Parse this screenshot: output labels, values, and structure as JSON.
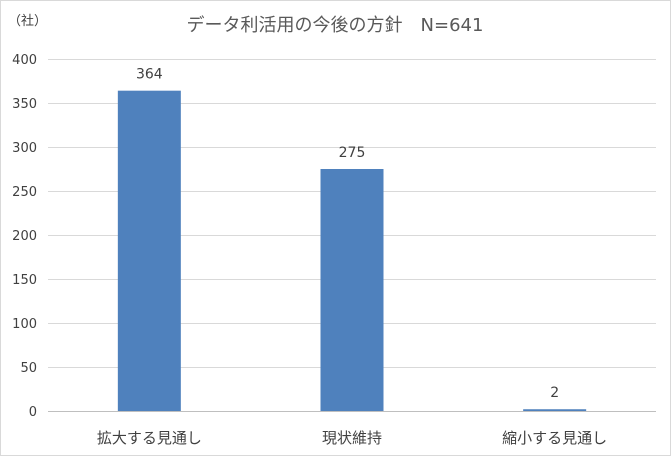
{
  "chart_data": {
    "type": "bar",
    "title": "データ利活用の今後の方針　N=641",
    "ylabel": "（社）",
    "xlabel": "",
    "categories": [
      "拡大する見通し",
      "現状維持",
      "縮小する見通し"
    ],
    "values": [
      364,
      275,
      2
    ],
    "ylim": [
      0,
      400
    ],
    "yticks": [
      0,
      50,
      100,
      150,
      200,
      250,
      300,
      350,
      400
    ],
    "grid": true,
    "legend": "none",
    "bar_color": "#4f81bd"
  }
}
